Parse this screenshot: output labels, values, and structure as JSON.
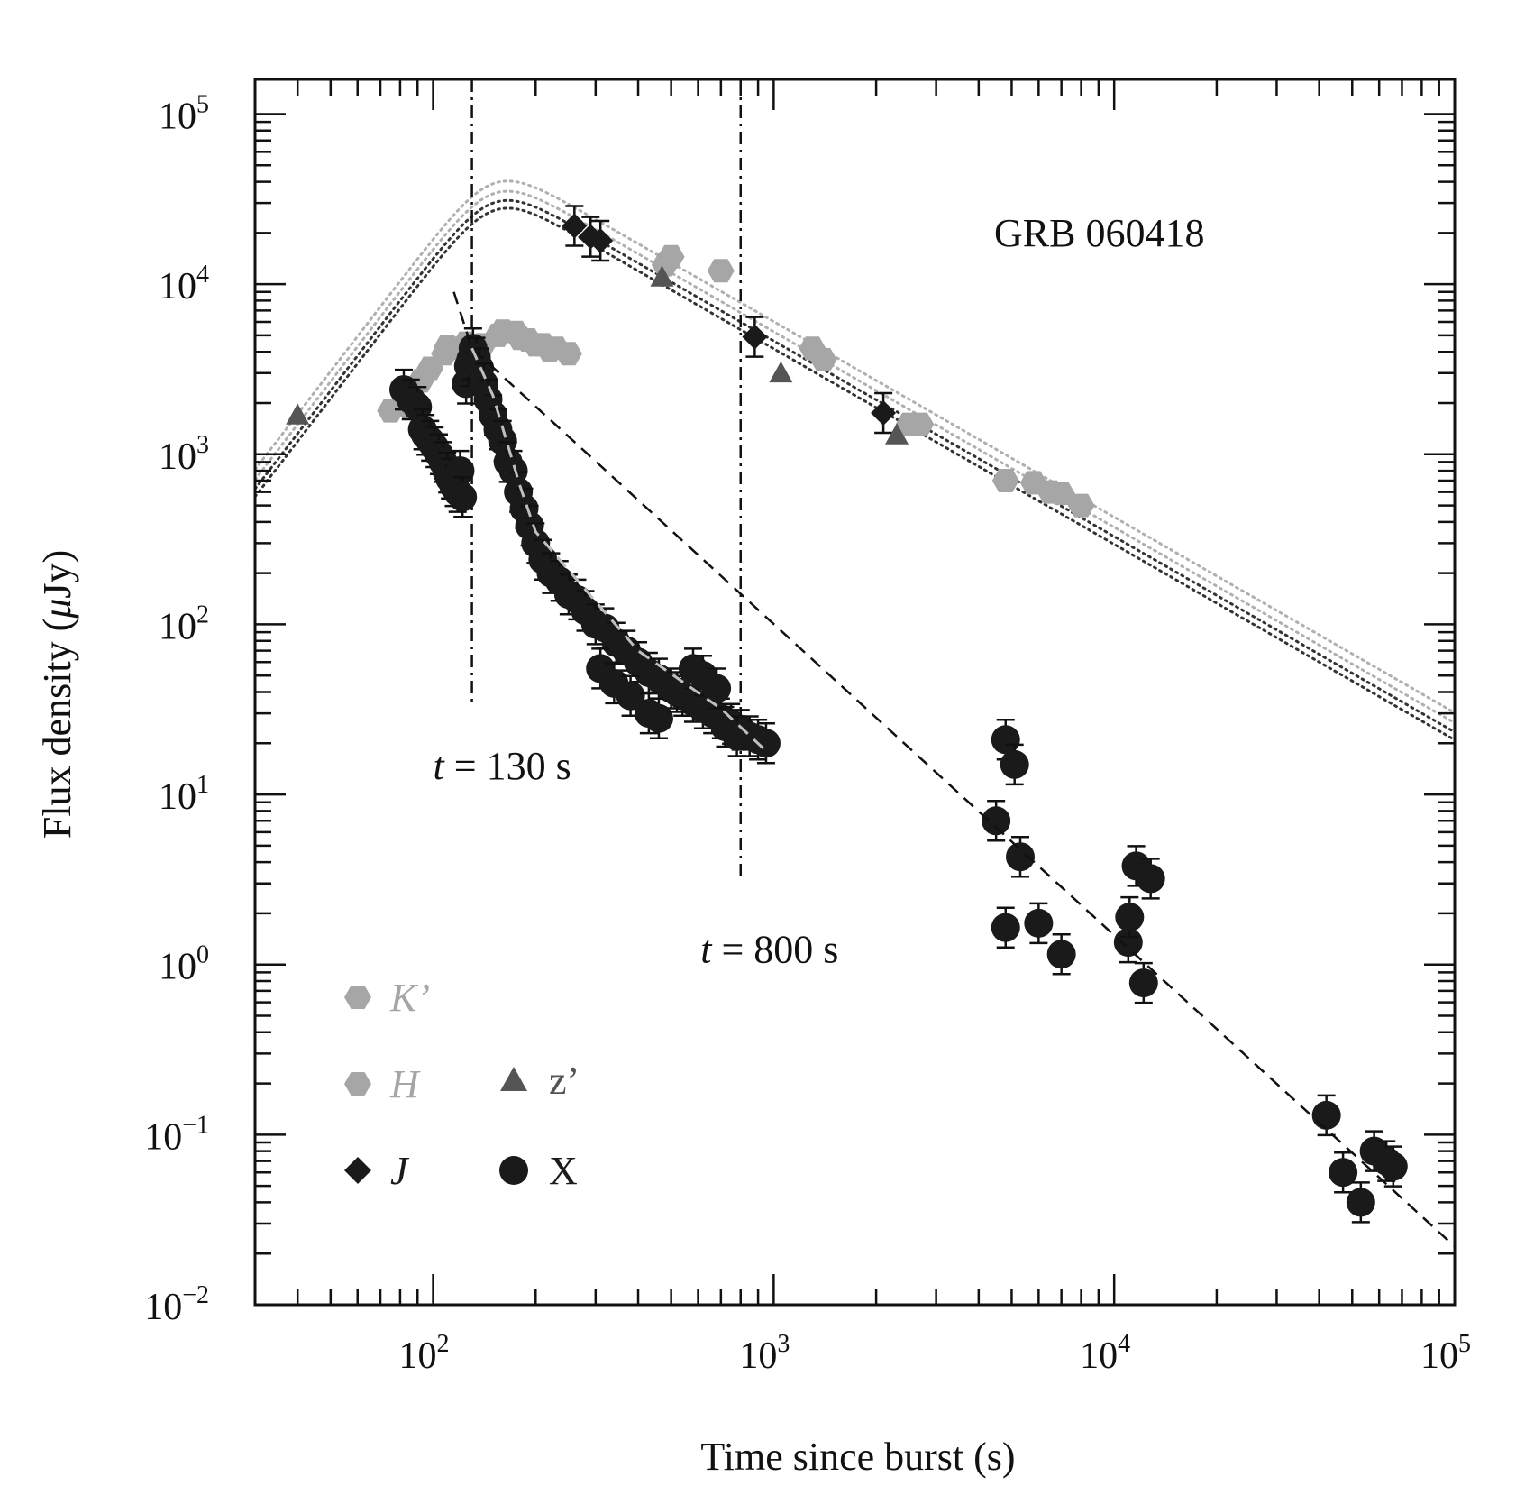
{
  "chart_data": {
    "type": "scatter",
    "title": "GRB 060418",
    "xlabel": "Time since burst (s)",
    "ylabel_main": "Flux density (",
    "ylabel_mu": "μ",
    "ylabel_tail": "Jy)",
    "x_scale": "log",
    "y_scale": "log",
    "xlim": [
      30,
      100000
    ],
    "ylim": [
      0.01,
      160000
    ],
    "x_ticks": [
      {
        "value": 100,
        "base": "10",
        "exp": "2"
      },
      {
        "value": 1000,
        "base": "10",
        "exp": "3"
      },
      {
        "value": 10000,
        "base": "10",
        "exp": "4"
      },
      {
        "value": 100000,
        "base": "10",
        "exp": "5"
      }
    ],
    "y_ticks": [
      {
        "value": 0.01,
        "base": "10",
        "exp": "−2"
      },
      {
        "value": 0.1,
        "base": "10",
        "exp": "−1"
      },
      {
        "value": 1,
        "base": "10",
        "exp": "0"
      },
      {
        "value": 10,
        "base": "10",
        "exp": "1"
      },
      {
        "value": 100,
        "base": "10",
        "exp": "2"
      },
      {
        "value": 1000,
        "base": "10",
        "exp": "3"
      },
      {
        "value": 10000,
        "base": "10",
        "exp": "4"
      },
      {
        "value": 100000,
        "base": "10",
        "exp": "5"
      }
    ],
    "vlines": [
      {
        "x": 130,
        "y_range": [
          33,
          100000
        ],
        "label_t": "t",
        "label_rest": " = 130 s",
        "label_x": 100,
        "label_y": 15
      },
      {
        "x": 800,
        "y_range": [
          3.3,
          100000
        ],
        "label_t": "t",
        "label_rest": " = 800 s",
        "label_x": 610,
        "label_y": 1.25
      }
    ],
    "series": [
      {
        "name": "K’",
        "marker": "hexagon",
        "color": "#a6a6a6",
        "points": [
          [
            85,
            1900
          ],
          [
            98,
            3200
          ],
          [
            110,
            4300
          ],
          [
            125,
            4500
          ],
          [
            140,
            4400
          ],
          [
            160,
            5300
          ],
          [
            175,
            5200
          ],
          [
            190,
            4700
          ],
          [
            210,
            4400
          ],
          [
            230,
            4200
          ],
          [
            500,
            14500
          ],
          [
            700,
            12000
          ],
          [
            1400,
            3600
          ],
          [
            2700,
            1500
          ],
          [
            4800,
            700
          ],
          [
            5800,
            680
          ],
          [
            7000,
            590
          ],
          [
            8000,
            500
          ]
        ]
      },
      {
        "name": "H",
        "marker": "hexagon",
        "color": "#a6a6a6",
        "points": [
          [
            75,
            1800
          ],
          [
            92,
            2700
          ],
          [
            108,
            3900
          ],
          [
            120,
            4200
          ],
          [
            135,
            4300
          ],
          [
            155,
            5000
          ],
          [
            180,
            4800
          ],
          [
            200,
            4400
          ],
          [
            220,
            4100
          ],
          [
            250,
            3900
          ],
          [
            480,
            13000
          ],
          [
            1300,
            4200
          ],
          [
            2500,
            1500
          ],
          [
            6500,
            600
          ]
        ]
      },
      {
        "name": "J",
        "marker": "diamond",
        "color": "#1a1a1a",
        "points": [
          [
            260,
            22000
          ],
          [
            290,
            19000
          ],
          [
            310,
            18000
          ],
          [
            880,
            4900
          ],
          [
            2100,
            1750
          ]
        ]
      },
      {
        "name": "z’",
        "marker": "triangle",
        "color": "#555555",
        "points": [
          [
            40,
            1700
          ],
          [
            470,
            11000
          ],
          [
            1050,
            3000
          ],
          [
            2300,
            1300
          ]
        ]
      },
      {
        "name": "X",
        "marker": "circle",
        "color": "#1a1a1a",
        "points": [
          [
            82,
            2400
          ],
          [
            86,
            2100
          ],
          [
            90,
            1900
          ],
          [
            93,
            1400
          ],
          [
            95,
            1300
          ],
          [
            98,
            1200
          ],
          [
            101,
            1100
          ],
          [
            104,
            1000
          ],
          [
            107,
            900
          ],
          [
            110,
            780
          ],
          [
            112,
            720
          ],
          [
            115,
            650
          ],
          [
            118,
            600
          ],
          [
            120,
            800
          ],
          [
            122,
            560
          ],
          [
            125,
            2600
          ],
          [
            127,
            3300
          ],
          [
            129,
            3600
          ],
          [
            131,
            4200
          ],
          [
            134,
            3700
          ],
          [
            137,
            3200
          ],
          [
            141,
            2600
          ],
          [
            145,
            2100
          ],
          [
            150,
            1700
          ],
          [
            155,
            1400
          ],
          [
            160,
            1200
          ],
          [
            166,
            900
          ],
          [
            172,
            800
          ],
          [
            178,
            600
          ],
          [
            185,
            480
          ],
          [
            192,
            380
          ],
          [
            200,
            300
          ],
          [
            210,
            240
          ],
          [
            222,
            200
          ],
          [
            235,
            180
          ],
          [
            250,
            150
          ],
          [
            265,
            140
          ],
          [
            280,
            120
          ],
          [
            300,
            100
          ],
          [
            320,
            95
          ],
          [
            345,
            78
          ],
          [
            370,
            70
          ],
          [
            400,
            60
          ],
          [
            430,
            52
          ],
          [
            460,
            48
          ],
          [
            500,
            42
          ],
          [
            540,
            38
          ],
          [
            580,
            35
          ],
          [
            620,
            32
          ],
          [
            660,
            30
          ],
          [
            700,
            28
          ],
          [
            750,
            26
          ],
          [
            800,
            24
          ],
          [
            850,
            22
          ],
          [
            900,
            21
          ],
          [
            950,
            20
          ],
          [
            310,
            55
          ],
          [
            340,
            45
          ],
          [
            380,
            38
          ],
          [
            430,
            30
          ],
          [
            460,
            28
          ],
          [
            520,
            40
          ],
          [
            580,
            55
          ],
          [
            620,
            50
          ],
          [
            680,
            42
          ],
          [
            720,
            25
          ],
          [
            780,
            22
          ],
          [
            4500,
            7
          ],
          [
            4800,
            21
          ],
          [
            5100,
            15
          ],
          [
            5300,
            4.3
          ],
          [
            4800,
            1.65
          ],
          [
            6000,
            1.75
          ],
          [
            7000,
            1.15
          ],
          [
            11000,
            1.35
          ],
          [
            11100,
            1.9
          ],
          [
            11600,
            3.8
          ],
          [
            12200,
            0.78
          ],
          [
            12800,
            3.2
          ],
          [
            42000,
            0.13
          ],
          [
            47000,
            0.06
          ],
          [
            53000,
            0.04
          ],
          [
            58000,
            0.08
          ],
          [
            63000,
            0.07
          ],
          [
            66000,
            0.065
          ]
        ]
      }
    ],
    "models": [
      {
        "name": "K’ model",
        "color": "#b0b0b0",
        "style": "dotted",
        "peak_x": 150,
        "peak_y": 39000,
        "rise": 2.6,
        "decay": 1.15,
        "sharp": 2.2
      },
      {
        "name": "H model",
        "color": "#b0b0b0",
        "style": "dotted",
        "peak_x": 150,
        "peak_y": 34000,
        "rise": 2.6,
        "decay": 1.15,
        "sharp": 2.2
      },
      {
        "name": "J model",
        "color": "#333333",
        "style": "dotted",
        "peak_x": 150,
        "peak_y": 30000,
        "rise": 2.6,
        "decay": 1.15,
        "sharp": 2.2
      },
      {
        "name": "z’ model",
        "color": "#333333",
        "style": "dotted",
        "peak_x": 150,
        "peak_y": 27000,
        "rise": 2.6,
        "decay": 1.15,
        "sharp": 2.2
      }
    ],
    "x_fit": {
      "dashed_black": [
        [
          115,
          9000
        ],
        [
          130,
          4200
        ],
        [
          100000,
          0.022
        ]
      ],
      "dashed_grey": [
        [
          130,
          4200
        ],
        [
          150,
          2200
        ],
        [
          180,
          650
        ],
        [
          200,
          350
        ],
        [
          260,
          190
        ],
        [
          400,
          70
        ],
        [
          700,
          32
        ],
        [
          950,
          18
        ]
      ]
    },
    "legend": {
      "placement": "bottom-left",
      "entries": [
        {
          "label": "K’",
          "italic": true,
          "marker": "hexagon",
          "color": "#a6a6a6"
        },
        {
          "label": "H",
          "italic": true,
          "marker": "hexagon",
          "color": "#a6a6a6"
        },
        {
          "label": "z’",
          "italic": false,
          "marker": "triangle",
          "color": "#555555"
        },
        {
          "label": "J",
          "italic": true,
          "marker": "diamond",
          "color": "#1a1a1a"
        },
        {
          "label": "X",
          "italic": false,
          "marker": "circle",
          "color": "#1a1a1a"
        }
      ]
    },
    "grid": false
  }
}
